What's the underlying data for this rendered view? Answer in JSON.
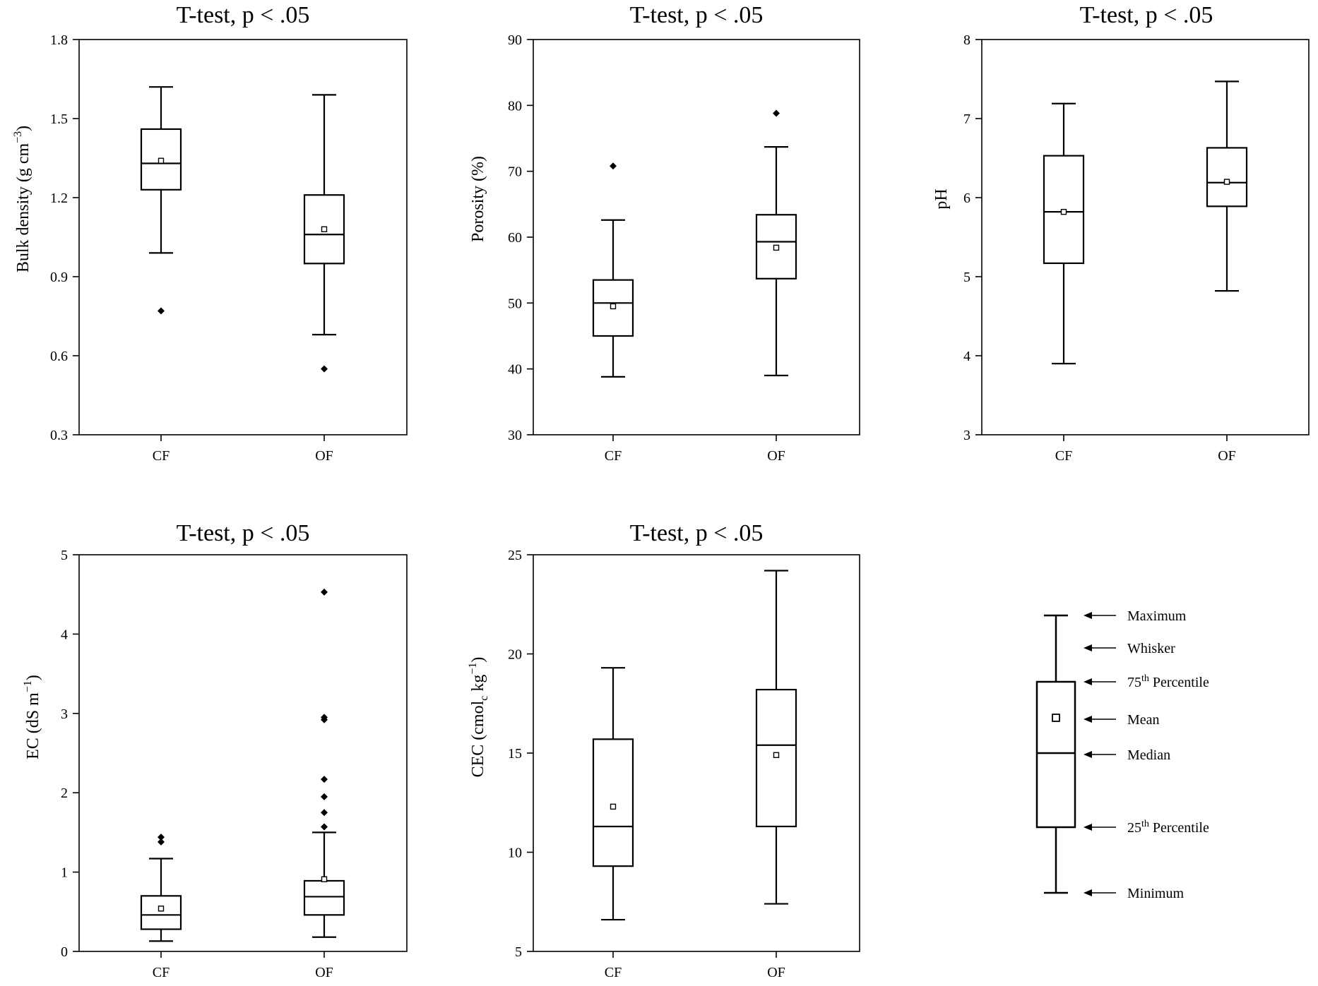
{
  "chart_data": [
    {
      "type": "box",
      "title": "T-test, p < .05",
      "ylabel": "Bulk density (g cm",
      "ylabel_sup": "−3",
      "ylabel_tail": ")",
      "ylim": [
        0.3,
        1.8
      ],
      "yticks": [
        "0.3",
        "0.6",
        "0.9",
        "1.2",
        "1.5",
        "1.8"
      ],
      "categories": [
        "CF",
        "OF"
      ],
      "boxes": [
        {
          "min": 0.99,
          "q1": 1.23,
          "median": 1.33,
          "q3": 1.46,
          "max": 1.62,
          "mean": 1.34,
          "outliers": [
            0.77
          ]
        },
        {
          "min": 0.68,
          "q1": 0.95,
          "median": 1.06,
          "q3": 1.21,
          "max": 1.59,
          "mean": 1.08,
          "outliers": [
            0.55
          ]
        }
      ]
    },
    {
      "type": "box",
      "title": "T-test, p < .05",
      "ylabel": "Porosity (%)",
      "ylabel_sup": "",
      "ylabel_tail": "",
      "ylim": [
        30,
        90
      ],
      "yticks": [
        "30",
        "40",
        "50",
        "60",
        "70",
        "80",
        "90"
      ],
      "categories": [
        "CF",
        "OF"
      ],
      "boxes": [
        {
          "min": 38.8,
          "q1": 45.0,
          "median": 50.0,
          "q3": 53.5,
          "max": 62.6,
          "mean": 49.5,
          "outliers": [
            70.8
          ]
        },
        {
          "min": 39.0,
          "q1": 53.7,
          "median": 59.3,
          "q3": 63.4,
          "max": 73.7,
          "mean": 58.4,
          "outliers": [
            78.8
          ]
        }
      ]
    },
    {
      "type": "box",
      "title": "T-test, p < .05",
      "ylabel": "pH",
      "ylabel_sup": "",
      "ylabel_tail": "",
      "ylim": [
        3,
        8
      ],
      "yticks": [
        "3",
        "4",
        "5",
        "6",
        "7",
        "8"
      ],
      "categories": [
        "CF",
        "OF"
      ],
      "boxes": [
        {
          "min": 3.9,
          "q1": 5.17,
          "median": 5.82,
          "q3": 6.53,
          "max": 7.19,
          "mean": 5.82,
          "outliers": []
        },
        {
          "min": 4.82,
          "q1": 5.89,
          "median": 6.19,
          "q3": 6.63,
          "max": 7.47,
          "mean": 6.2,
          "outliers": []
        }
      ]
    },
    {
      "type": "box",
      "title": "T-test, p < .05",
      "ylabel": "EC (dS m",
      "ylabel_sup": "−1",
      "ylabel_tail": ")",
      "ylim": [
        0,
        5
      ],
      "yticks": [
        "0",
        "1",
        "2",
        "3",
        "4",
        "5"
      ],
      "categories": [
        "CF",
        "OF"
      ],
      "boxes": [
        {
          "min": 0.13,
          "q1": 0.28,
          "median": 0.46,
          "q3": 0.7,
          "max": 1.17,
          "mean": 0.54,
          "outliers": [
            1.38,
            1.44
          ]
        },
        {
          "min": 0.18,
          "q1": 0.46,
          "median": 0.69,
          "q3": 0.89,
          "max": 1.5,
          "mean": 0.91,
          "outliers": [
            1.57,
            1.75,
            1.95,
            2.17,
            2.92,
            2.95,
            4.53
          ]
        }
      ]
    },
    {
      "type": "box",
      "title": "T-test, p < .05",
      "ylabel": "CEC (cmol",
      "ylabel_sub": "c",
      "ylabel_mid": " kg",
      "ylabel_sup": "−1",
      "ylabel_tail": ")",
      "ylim": [
        5,
        25
      ],
      "yticks": [
        "5",
        "10",
        "15",
        "20",
        "25"
      ],
      "categories": [
        "CF",
        "OF"
      ],
      "boxes": [
        {
          "min": 6.6,
          "q1": 9.3,
          "median": 11.3,
          "q3": 15.7,
          "max": 19.3,
          "mean": 12.3,
          "outliers": []
        },
        {
          "min": 7.4,
          "q1": 11.3,
          "median": 15.4,
          "q3": 18.2,
          "max": 24.2,
          "mean": 14.9,
          "outliers": []
        }
      ]
    }
  ],
  "legend": {
    "maximum": "Maximum",
    "whisker": "Whisker",
    "p75": "75",
    "p75_sup": "th",
    "p75_tail": " Percentile",
    "mean": "Mean",
    "median": "Median",
    "p25": "25",
    "p25_sup": "th",
    "p25_tail": " Percentile",
    "minimum": "Minimum"
  }
}
